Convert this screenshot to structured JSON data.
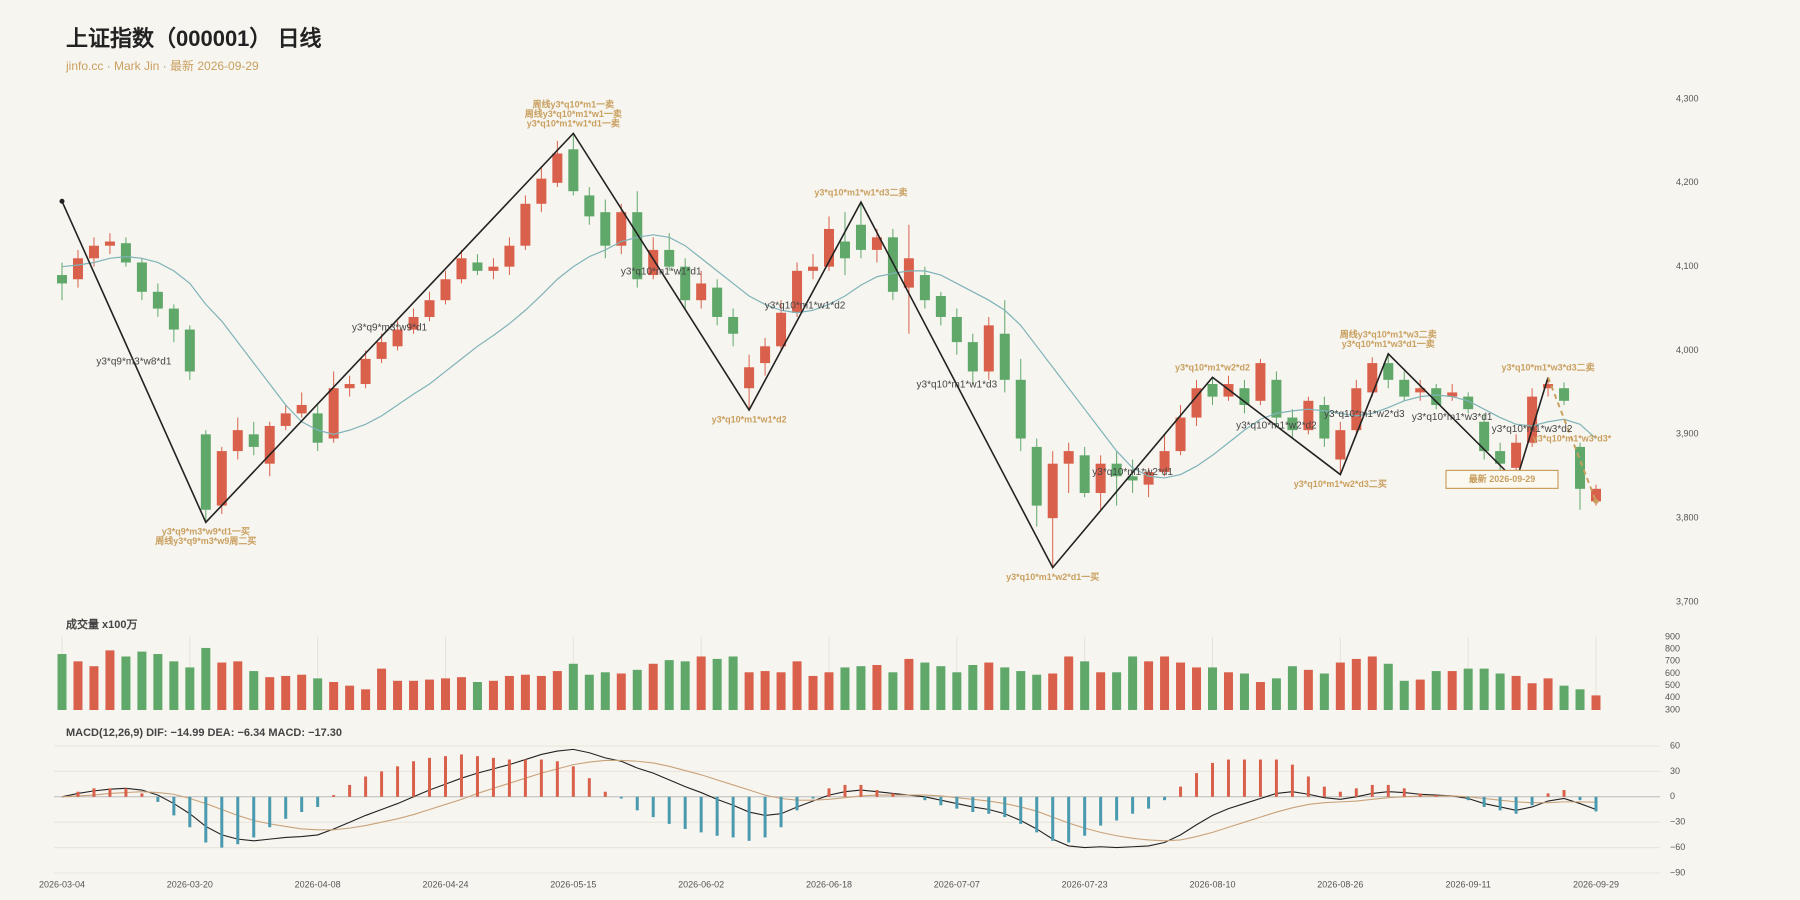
{
  "chart_data": [
    {
      "type": "candlestick",
      "title": "上证指数（000001） 日线",
      "subtitle": "jinfo.cc · Mark Jin · 最新 2026-09-29",
      "categories": [
        "2026-03-04",
        null,
        null,
        null,
        null,
        null,
        null,
        null,
        "2026-03-20",
        null,
        null,
        null,
        null,
        null,
        null,
        null,
        "2026-04-08",
        null,
        null,
        null,
        null,
        null,
        null,
        null,
        "2026-04-24",
        null,
        null,
        null,
        null,
        null,
        null,
        null,
        "2026-05-15",
        null,
        null,
        null,
        null,
        null,
        null,
        null,
        "2026-06-02",
        null,
        null,
        null,
        null,
        null,
        null,
        null,
        "2026-06-18",
        null,
        null,
        null,
        null,
        null,
        null,
        null,
        "2026-07-07",
        null,
        null,
        null,
        null,
        null,
        null,
        null,
        "2026-07-23",
        null,
        null,
        null,
        null,
        null,
        null,
        null,
        "2026-08-10",
        null,
        null,
        null,
        null,
        null,
        null,
        null,
        "2026-08-26",
        null,
        null,
        null,
        null,
        null,
        null,
        null,
        "2026-09-11",
        null,
        null,
        null,
        null,
        null,
        null,
        null,
        "2026-09-29"
      ],
      "open": [
        4090,
        4085,
        4110,
        4125,
        4128,
        4105,
        4070,
        4050,
        4025,
        3900,
        3815,
        3880,
        3900,
        3865,
        3910,
        3925,
        3925,
        3895,
        3955,
        3960,
        3990,
        4005,
        4025,
        4040,
        4060,
        4085,
        4105,
        4095,
        4100,
        4125,
        4175,
        4200,
        4240,
        4185,
        4165,
        4125,
        4165,
        4090,
        4120,
        4100,
        4060,
        4075,
        4040,
        3955,
        3985,
        4005,
        4045,
        4095,
        4100,
        4130,
        4150,
        4120,
        4135,
        4075,
        4090,
        4065,
        4040,
        4010,
        3975,
        4020,
        3965,
        3885,
        3800,
        3865,
        3875,
        3830,
        3865,
        3850,
        3840,
        3855,
        3880,
        3920,
        3960,
        3945,
        3955,
        3940,
        3965,
        3920,
        3905,
        3935,
        3870,
        3905,
        3950,
        3985,
        3965,
        3950,
        3955,
        3945,
        3945,
        3915,
        3880,
        3860,
        3890,
        3955,
        3955,
        3885,
        3820
      ],
      "close": [
        4080,
        4110,
        4125,
        4130,
        4105,
        4070,
        4050,
        4025,
        3975,
        3810,
        3880,
        3905,
        3885,
        3910,
        3925,
        3935,
        3890,
        3955,
        3960,
        3990,
        4010,
        4025,
        4040,
        4060,
        4085,
        4110,
        4095,
        4100,
        4125,
        4175,
        4205,
        4235,
        4190,
        4160,
        4125,
        4165,
        4085,
        4120,
        4100,
        4060,
        4080,
        4040,
        4020,
        3980,
        4005,
        4045,
        4095,
        4100,
        4145,
        4110,
        4120,
        4135,
        4070,
        4110,
        4060,
        4040,
        4010,
        3975,
        4030,
        3965,
        3895,
        3815,
        3865,
        3880,
        3830,
        3865,
        3850,
        3845,
        3855,
        3880,
        3920,
        3955,
        3945,
        3960,
        3935,
        3985,
        3920,
        3905,
        3940,
        3895,
        3905,
        3955,
        3985,
        3965,
        3945,
        3955,
        3935,
        3950,
        3930,
        3880,
        3865,
        3890,
        3945,
        3960,
        3940,
        3835,
        3835
      ],
      "high": [
        4105,
        4120,
        4135,
        4140,
        4135,
        4110,
        4080,
        4055,
        4030,
        3905,
        3885,
        3920,
        3915,
        3915,
        3935,
        3950,
        3935,
        3975,
        3970,
        4000,
        4020,
        4035,
        4050,
        4070,
        4095,
        4120,
        4115,
        4110,
        4135,
        4185,
        4220,
        4250,
        4259,
        4195,
        4180,
        4175,
        4190,
        4135,
        4140,
        4110,
        4095,
        4085,
        4050,
        3995,
        4015,
        4060,
        4105,
        4115,
        4160,
        4165,
        4177,
        4145,
        4145,
        4150,
        4100,
        4070,
        4050,
        4020,
        4040,
        4060,
        3990,
        3895,
        3880,
        3890,
        3885,
        3875,
        3880,
        3870,
        3860,
        3900,
        3935,
        3965,
        3968,
        3970,
        3965,
        3990,
        3975,
        3930,
        3945,
        3945,
        3915,
        3965,
        3992,
        3996,
        3975,
        3965,
        3960,
        3960,
        3950,
        3925,
        3890,
        3900,
        3955,
        3968,
        3962,
        3890,
        3840
      ],
      "low": [
        4060,
        4075,
        4100,
        4115,
        4100,
        4060,
        4040,
        4010,
        3965,
        3795,
        3805,
        3870,
        3875,
        3850,
        3905,
        3920,
        3880,
        3890,
        3945,
        3955,
        3985,
        4000,
        4020,
        4035,
        4055,
        4080,
        4090,
        4085,
        4090,
        4120,
        4165,
        4195,
        4185,
        4150,
        4110,
        4115,
        4075,
        4085,
        4095,
        4050,
        4050,
        4030,
        4005,
        3929,
        3970,
        4000,
        4040,
        4085,
        4095,
        4090,
        4110,
        4105,
        4060,
        4020,
        4050,
        4030,
        3995,
        3960,
        3965,
        3950,
        3880,
        3790,
        3741,
        3830,
        3825,
        3810,
        3815,
        3830,
        3825,
        3850,
        3875,
        3910,
        3935,
        3940,
        3925,
        3935,
        3910,
        3895,
        3900,
        3885,
        3852,
        3900,
        3945,
        3955,
        3940,
        3940,
        3930,
        3940,
        3925,
        3870,
        3855,
        3844,
        3885,
        3945,
        3935,
        3810,
        3815
      ],
      "up_color": "#d9614c",
      "down_color": "#5fa86a",
      "ma": {
        "color": "#7fb3b8",
        "values": [
          4100,
          4102,
          4105,
          4110,
          4112,
          4110,
          4105,
          4095,
          4080,
          4055,
          4035,
          4010,
          3985,
          3960,
          3935,
          3915,
          3905,
          3900,
          3905,
          3912,
          3922,
          3935,
          3948,
          3960,
          3975,
          3990,
          4005,
          4018,
          4032,
          4048,
          4066,
          4085,
          4100,
          4112,
          4120,
          4130,
          4135,
          4138,
          4135,
          4125,
          4110,
          4095,
          4080,
          4065,
          4055,
          4048,
          4045,
          4048,
          4055,
          4065,
          4078,
          4088,
          4092,
          4095,
          4095,
          4090,
          4080,
          4070,
          4060,
          4048,
          4030,
          4005,
          3980,
          3955,
          3930,
          3905,
          3880,
          3860,
          3850,
          3848,
          3852,
          3862,
          3875,
          3890,
          3905,
          3918,
          3925,
          3928,
          3930,
          3928,
          3925,
          3922,
          3925,
          3932,
          3940,
          3945,
          3947,
          3945,
          3940,
          3930,
          3920,
          3912,
          3910,
          3915,
          3918,
          3912,
          3895
        ]
      },
      "zigzag": {
        "color": "#222222",
        "label_color": "#c9a060",
        "last_segment_dashed": true,
        "points": [
          {
            "x": 0,
            "y": 4178,
            "labels": []
          },
          {
            "x": 9,
            "y": 3795,
            "labels": [
              "y3*q9*m3*w9*d1一买",
              "周线y3*q9*m3*w9周二买"
            ]
          },
          {
            "x": 32,
            "y": 4259,
            "labels": [
              "周线y3*q10*m1一卖",
              "周线y3*q10*m1*w1一卖",
              "y3*q10*m1*w1*d1一卖"
            ]
          },
          {
            "x": 43,
            "y": 3929,
            "labels": [
              "y3*q10*m1*w1*d2"
            ]
          },
          {
            "x": 50,
            "y": 4177,
            "labels": [
              "y3*q10*m1*w1*d3二卖"
            ]
          },
          {
            "x": 62,
            "y": 3741,
            "labels": [
              "y3*q10*m1*w2*d1一买"
            ]
          },
          {
            "x": 72,
            "y": 3968,
            "labels": [
              "y3*q10*m1*w2*d2"
            ]
          },
          {
            "x": 80,
            "y": 3852,
            "labels": [
              "y3*q10*m1*w2*d3二买"
            ]
          },
          {
            "x": 83,
            "y": 3996,
            "labels": [
              "周线y3*q10*m1*w3二卖",
              "y3*q10*m1*w3*d1一卖"
            ]
          },
          {
            "x": 91,
            "y": 3844,
            "labels": []
          },
          {
            "x": 93,
            "y": 3968,
            "labels": [
              "y3*q10*m1*w3*d3二卖"
            ]
          },
          {
            "x": 96,
            "y": 3820,
            "labels": []
          }
        ],
        "segment_labels": [
          "y3*q9*m3*w8*d1",
          "y3*q9*m3*w9*d1",
          "y3*q10*m1*w1*d1",
          "y3*q10*m1*w1*d2",
          "y3*q10*m1*w1*d3",
          "y3*q10*m1*w2*d1",
          "y3*q10*m1*w2*d2",
          "y3*q10*m1*w2*d3",
          "y3*q10*m1*w3*d1",
          "y3*q10*m1*w3*d2",
          "y3*q10*m1*w3*d3*"
        ]
      },
      "latest_label": "最新 2026-09-29",
      "ylim": [
        3700,
        4300
      ],
      "yticks": [
        {
          "value": 3700,
          "label": "3,700"
        },
        {
          "value": 3800,
          "label": "3,800"
        },
        {
          "value": 3900,
          "label": "3,900"
        },
        {
          "value": 4000,
          "label": "4,000"
        },
        {
          "value": 4100,
          "label": "4,100"
        },
        {
          "value": 4200,
          "label": "4,200"
        },
        {
          "value": 4300,
          "label": "4,300"
        }
      ]
    },
    {
      "type": "bar",
      "title": "成交量 x100万",
      "values": [
        760,
        700,
        660,
        790,
        740,
        780,
        760,
        700,
        650,
        810,
        690,
        700,
        620,
        570,
        580,
        590,
        560,
        530,
        500,
        470,
        640,
        540,
        540,
        550,
        560,
        570,
        530,
        540,
        580,
        590,
        580,
        620,
        680,
        590,
        610,
        600,
        630,
        680,
        710,
        700,
        740,
        720,
        740,
        610,
        620,
        610,
        700,
        580,
        610,
        650,
        660,
        670,
        610,
        720,
        690,
        660,
        610,
        670,
        690,
        650,
        620,
        590,
        600,
        740,
        700,
        610,
        610,
        740,
        700,
        740,
        690,
        650,
        650,
        610,
        600,
        530,
        560,
        660,
        630,
        600,
        690,
        720,
        740,
        680,
        540,
        550,
        620,
        620,
        640,
        640,
        600,
        580,
        520,
        560,
        500,
        470,
        420
      ],
      "ylim": [
        300,
        900
      ],
      "yticks": [
        300,
        400,
        500,
        600,
        700,
        800,
        900
      ]
    },
    {
      "type": "macd",
      "title": "MACD(12,26,9) DIF: −14.99 DEA: −6.34 MACD: −17.30",
      "grid": true,
      "series": [
        {
          "color": "#222222",
          "values": [
            0,
            4,
            7,
            9,
            10,
            8,
            2,
            -8,
            -20,
            -35,
            -45,
            -50,
            -52,
            -50,
            -48,
            -47,
            -45,
            -38,
            -30,
            -22,
            -15,
            -8,
            0,
            8,
            15,
            22,
            28,
            33,
            38,
            44,
            50,
            54,
            56,
            52,
            46,
            42,
            34,
            28,
            20,
            12,
            5,
            -3,
            -10,
            -18,
            -22,
            -20,
            -12,
            -5,
            2,
            6,
            8,
            6,
            4,
            2,
            0,
            -4,
            -8,
            -12,
            -15,
            -20,
            -28,
            -38,
            -50,
            -58,
            -60,
            -59,
            -60,
            -59,
            -58,
            -54,
            -45,
            -33,
            -22,
            -14,
            -8,
            -2,
            4,
            6,
            3,
            -1,
            -3,
            0,
            4,
            6,
            5,
            3,
            2,
            1,
            -2,
            -8,
            -12,
            -16,
            -12,
            -5,
            -2,
            -8,
            -14.99
          ]
        },
        {
          "color": "#c9a27a",
          "values": [
            0,
            1,
            2,
            4,
            5,
            6,
            5,
            3,
            -2,
            -8,
            -15,
            -22,
            -28,
            -32,
            -35,
            -38,
            -39,
            -39,
            -37,
            -34,
            -30,
            -26,
            -21,
            -15,
            -9,
            -3,
            4,
            10,
            16,
            22,
            28,
            33,
            38,
            41,
            43,
            43,
            42,
            40,
            36,
            31,
            26,
            20,
            14,
            8,
            2,
            -2,
            -4,
            -4,
            -3,
            -1,
            1,
            2,
            2,
            2,
            2,
            1,
            -1,
            -3,
            -5,
            -8,
            -12,
            -17,
            -24,
            -31,
            -37,
            -42,
            -46,
            -49,
            -51,
            -52,
            -51,
            -47,
            -42,
            -36,
            -30,
            -24,
            -18,
            -13,
            -9,
            -7,
            -6,
            -5,
            -3,
            -1,
            0,
            1,
            1,
            1,
            0,
            -2,
            -4,
            -6,
            -7,
            -7,
            -6,
            -6,
            -6.34
          ]
        },
        {
          "type": "bar",
          "pos_color": "#d9614c",
          "neg_color": "#4a9aaf",
          "values": [
            0,
            6,
            10,
            10,
            10,
            4,
            -6,
            -22,
            -36,
            -54,
            -60,
            -56,
            -48,
            -36,
            -26,
            -18,
            -12,
            2,
            14,
            24,
            30,
            36,
            42,
            46,
            48,
            50,
            48,
            46,
            44,
            44,
            44,
            42,
            36,
            22,
            6,
            -2,
            -16,
            -24,
            -32,
            -38,
            -42,
            -46,
            -48,
            -52,
            -48,
            -36,
            -16,
            -2,
            10,
            14,
            14,
            8,
            4,
            0,
            -4,
            -10,
            -14,
            -18,
            -20,
            -24,
            -32,
            -42,
            -52,
            -54,
            -46,
            -34,
            -28,
            -20,
            -14,
            -4,
            12,
            28,
            40,
            44,
            44,
            44,
            44,
            38,
            24,
            12,
            6,
            10,
            14,
            14,
            10,
            4,
            2,
            0,
            -4,
            -12,
            -16,
            -20,
            -10,
            4,
            8,
            -4,
            -17.3
          ]
        }
      ],
      "ylim": [
        -90,
        60
      ],
      "yticks": [
        {
          "value": -90,
          "label": "−90"
        },
        {
          "value": -60,
          "label": "−60"
        },
        {
          "value": -30,
          "label": "−30"
        },
        0,
        30,
        60
      ]
    }
  ]
}
